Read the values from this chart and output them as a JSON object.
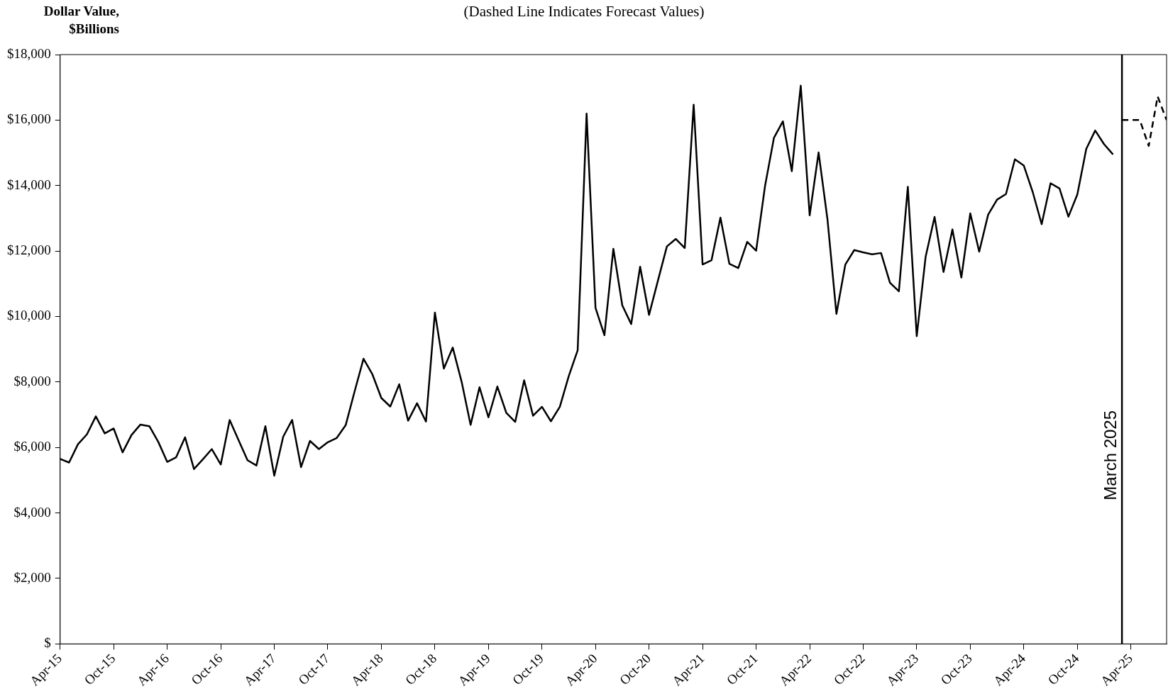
{
  "chart_data": {
    "type": "line",
    "title": "(Dashed Line Indicates Forecast Values)",
    "ylabel": "Dollar Value, $Billions",
    "series": [
      {
        "color": "#000000",
        "line_style": "solid",
        "x": [
          "2015-04",
          "2015-05",
          "2015-06",
          "2015-07",
          "2015-08",
          "2015-09",
          "2015-10",
          "2015-11",
          "2015-12",
          "2016-01",
          "2016-02",
          "2016-03",
          "2016-04",
          "2016-05",
          "2016-06",
          "2016-07",
          "2016-08",
          "2016-09",
          "2016-10",
          "2016-11",
          "2016-12",
          "2017-01",
          "2017-02",
          "2017-03",
          "2017-04",
          "2017-05",
          "2017-06",
          "2017-07",
          "2017-08",
          "2017-09",
          "2017-10",
          "2017-11",
          "2017-12",
          "2018-01",
          "2018-02",
          "2018-03",
          "2018-04",
          "2018-05",
          "2018-06",
          "2018-07",
          "2018-08",
          "2018-09",
          "2018-10",
          "2018-11",
          "2018-12",
          "2019-01",
          "2019-02",
          "2019-03",
          "2019-04",
          "2019-05",
          "2019-06",
          "2019-07",
          "2019-08",
          "2019-09",
          "2019-10",
          "2019-11",
          "2019-12",
          "2020-01",
          "2020-02",
          "2020-03",
          "2020-04",
          "2020-05",
          "2020-06",
          "2020-07",
          "2020-08",
          "2020-09",
          "2020-10",
          "2020-11",
          "2020-12",
          "2021-01",
          "2021-02",
          "2021-03",
          "2021-04",
          "2021-05",
          "2021-06",
          "2021-07",
          "2021-08",
          "2021-09",
          "2021-10",
          "2021-11",
          "2021-12",
          "2022-01",
          "2022-02",
          "2022-03",
          "2022-04",
          "2022-05",
          "2022-06",
          "2022-07",
          "2022-08",
          "2022-09",
          "2022-10",
          "2022-11",
          "2022-12",
          "2023-01",
          "2023-02",
          "2023-03",
          "2023-04",
          "2023-05",
          "2023-06",
          "2023-07",
          "2023-08",
          "2023-09",
          "2023-10",
          "2023-11",
          "2023-12",
          "2024-01",
          "2024-02",
          "2024-03",
          "2024-04",
          "2024-05",
          "2024-06",
          "2024-07",
          "2024-08",
          "2024-09",
          "2024-10",
          "2024-11",
          "2024-12",
          "2025-01",
          "2025-02"
        ],
        "values": [
          5650,
          5540,
          6100,
          6400,
          6950,
          6430,
          6580,
          5850,
          6380,
          6700,
          6650,
          6170,
          5560,
          5700,
          6310,
          5340,
          5640,
          5950,
          5480,
          6840,
          6220,
          5610,
          5450,
          6650,
          5140,
          6330,
          6840,
          5400,
          6200,
          5950,
          6160,
          6290,
          6680,
          7710,
          8710,
          8230,
          7510,
          7250,
          7930,
          6820,
          7350,
          6790,
          10120,
          8410,
          9050,
          8000,
          6690,
          7840,
          6920,
          7860,
          7060,
          6780,
          8050,
          6970,
          7240,
          6800,
          7240,
          8180,
          8970,
          16200,
          10260,
          9430,
          12070,
          10340,
          9770,
          11520,
          10050,
          11100,
          12140,
          12370,
          12090,
          16470,
          11590,
          11720,
          13020,
          11610,
          11480,
          12280,
          12010,
          13990,
          15460,
          15960,
          14440,
          17050,
          13090,
          15010,
          12960,
          10080,
          11590,
          12030,
          11960,
          11900,
          11940,
          11030,
          10770,
          13960,
          9400,
          11830,
          13040,
          11360,
          12660,
          11190,
          13150,
          11980,
          13110,
          13570,
          13740,
          14800,
          14610,
          13800,
          12820,
          14070,
          13910,
          13050,
          13730,
          15120,
          15680,
          15260,
          14950
        ]
      },
      {
        "color": "#000000",
        "line_style": "dashed",
        "x": [
          "2025-03",
          "2025-04",
          "2025-05",
          "2025-06",
          "2025-07",
          "2025-08"
        ],
        "values": [
          16000,
          16000,
          16000,
          15210,
          16720,
          16000
        ]
      }
    ],
    "xlim": [
      "2015-04",
      "2025-08"
    ],
    "xticks": [
      {
        "value": "2015-04",
        "label": "Apr-15"
      },
      {
        "value": "2015-10",
        "label": "Oct-15"
      },
      {
        "value": "2016-04",
        "label": "Apr-16"
      },
      {
        "value": "2016-10",
        "label": "Oct-16"
      },
      {
        "value": "2017-04",
        "label": "Apr-17"
      },
      {
        "value": "2017-10",
        "label": "Oct-17"
      },
      {
        "value": "2018-04",
        "label": "Apr-18"
      },
      {
        "value": "2018-10",
        "label": "Oct-18"
      },
      {
        "value": "2019-04",
        "label": "Apr-19"
      },
      {
        "value": "2019-10",
        "label": "Oct-19"
      },
      {
        "value": "2020-04",
        "label": "Apr-20"
      },
      {
        "value": "2020-10",
        "label": "Oct-20"
      },
      {
        "value": "2021-04",
        "label": "Apr-21"
      },
      {
        "value": "2021-10",
        "label": "Oct-21"
      },
      {
        "value": "2022-04",
        "label": "Apr-22"
      },
      {
        "value": "2022-10",
        "label": "Oct-22"
      },
      {
        "value": "2023-04",
        "label": "Apr-23"
      },
      {
        "value": "2023-10",
        "label": "Oct-23"
      },
      {
        "value": "2024-04",
        "label": "Apr-24"
      },
      {
        "value": "2024-10",
        "label": "Oct-24"
      },
      {
        "value": "2025-04",
        "label": "Apr-25"
      }
    ],
    "ylim": [
      0,
      18000
    ],
    "yticks": [
      {
        "value": 0,
        "label": "$"
      },
      {
        "value": 2000,
        "label": "$2,000"
      },
      {
        "value": 4000,
        "label": "$4,000"
      },
      {
        "value": 6000,
        "label": "$6,000"
      },
      {
        "value": 8000,
        "label": "$8,000"
      },
      {
        "value": 10000,
        "label": "$10,000"
      },
      {
        "value": 12000,
        "label": "$12,000"
      },
      {
        "value": 14000,
        "label": "$14,000"
      },
      {
        "value": 16000,
        "label": "$16,000"
      },
      {
        "value": 18000,
        "label": "$18,000"
      }
    ],
    "ref_lines": [
      {
        "axis": "x",
        "value": "2025-03",
        "label": "March 2025",
        "color": "#000000"
      }
    ],
    "marker": "none",
    "grid": false,
    "legend": false
  }
}
